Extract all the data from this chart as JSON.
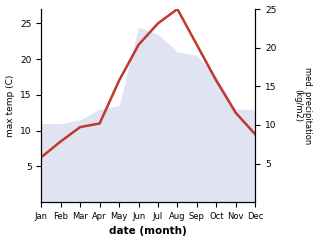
{
  "months": [
    "Jan",
    "Feb",
    "Mar",
    "Apr",
    "May",
    "Jun",
    "Jul",
    "Aug",
    "Sep",
    "Oct",
    "Nov",
    "Dec"
  ],
  "temp": [
    6.3,
    8.5,
    10.5,
    11.0,
    17.0,
    22.0,
    25.0,
    27.0,
    22.0,
    17.0,
    12.5,
    9.5
  ],
  "precip": [
    11.0,
    11.0,
    11.5,
    13.0,
    13.5,
    24.5,
    23.5,
    21.0,
    20.5,
    17.5,
    13.0,
    13.0
  ],
  "temp_color": "#c0392b",
  "precip_fill_color": "#c5cce8",
  "left_ylabel": "max temp (C)",
  "right_ylabel": "med. precipitation\n(kg/m2)",
  "xlabel": "date (month)",
  "left_ylim": [
    0,
    27
  ],
  "right_ylim": [
    0,
    25
  ],
  "left_yticks": [
    5,
    10,
    15,
    20,
    25
  ],
  "right_yticks": [
    5,
    10,
    15,
    20,
    25
  ],
  "bg_color": "#ffffff",
  "temp_linewidth": 1.8,
  "precip_alpha": 0.55,
  "precip_scale": 1.08
}
